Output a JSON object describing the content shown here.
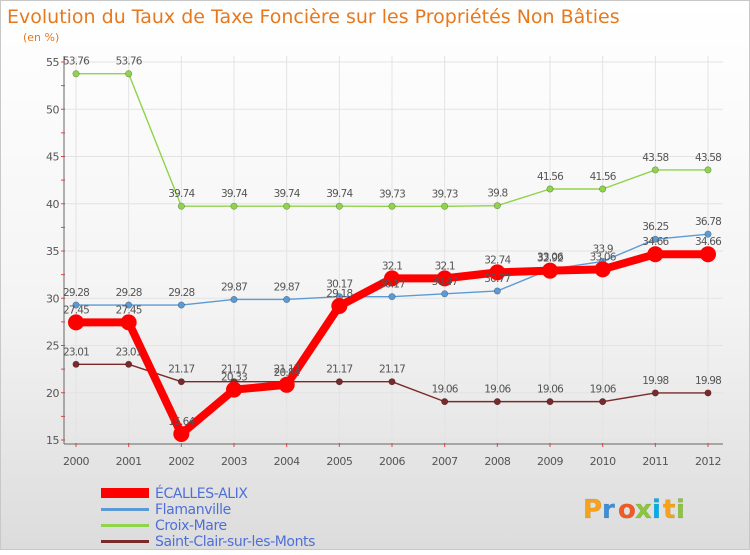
{
  "chart_data": {
    "type": "line",
    "title": "Evolution du Taux de Taxe Foncière sur les Propriétés Non Bâties",
    "ylabel": "(en %)",
    "xlabel": "",
    "ylim": [
      15,
      55
    ],
    "yticks": [
      15,
      20,
      25,
      30,
      35,
      40,
      45,
      50,
      55
    ],
    "categories": [
      "2000",
      "2001",
      "2002",
      "2003",
      "2004",
      "2005",
      "2006",
      "2007",
      "2008",
      "2009",
      "2010",
      "2011",
      "2012"
    ],
    "series": [
      {
        "name": "ÉCALLES-ALIX",
        "color": "#ff0000",
        "values": [
          27.45,
          27.45,
          15.64,
          20.33,
          20.84,
          29.18,
          32.1,
          32.1,
          32.74,
          32.92,
          33.06,
          34.66,
          34.66
        ],
        "labels": [
          "27.45",
          "27.45",
          "15.64",
          "20.33",
          "20.84",
          "29.18",
          "32.1",
          "32.1",
          "32.74",
          "32.92",
          "33.06",
          "34.66",
          "34.66"
        ]
      },
      {
        "name": "Flamanville",
        "color": "#5b9bd5",
        "values": [
          29.28,
          29.28,
          29.28,
          29.87,
          29.87,
          30.17,
          30.17,
          30.47,
          30.77,
          33.06,
          33.9,
          36.25,
          36.78
        ],
        "labels": [
          "29.28",
          "29.28",
          "29.28",
          "29.87",
          "29.87",
          "30.17",
          "30.17",
          "30.47",
          "30.77",
          "33.06",
          "33.9",
          "36.25",
          "36.78"
        ]
      },
      {
        "name": "Croix-Mare",
        "color": "#8fd44a",
        "values": [
          53.76,
          53.76,
          39.74,
          39.74,
          39.74,
          39.74,
          39.73,
          39.73,
          39.8,
          41.56,
          41.56,
          43.58,
          43.58
        ],
        "labels": [
          "53.76",
          "53.76",
          "39.74",
          "39.74",
          "39.74",
          "39.74",
          "39.73",
          "39.73",
          "39.8",
          "41.56",
          "41.56",
          "43.58",
          "43.58"
        ]
      },
      {
        "name": "Saint-Clair-sur-les-Monts",
        "color": "#7a2a2a",
        "values": [
          23.01,
          23.01,
          21.17,
          21.17,
          21.17,
          21.17,
          21.17,
          19.06,
          19.06,
          19.06,
          19.06,
          19.98,
          19.98
        ],
        "labels": [
          "23.01",
          "23.01",
          "21.17",
          "21.17",
          "21.17",
          "21.17",
          "21.17",
          "19.06",
          "19.06",
          "19.06",
          "19.06",
          "19.98",
          "19.98"
        ]
      }
    ]
  },
  "brand": {
    "letters": [
      "P",
      "r",
      "o",
      "x",
      "i",
      "t",
      "i"
    ],
    "colors": [
      "#f7a21b",
      "#3a8fd8",
      "#f15a24",
      "#8cc63f",
      "#00aeef",
      "#f7a21b",
      "#8cc63f"
    ]
  }
}
